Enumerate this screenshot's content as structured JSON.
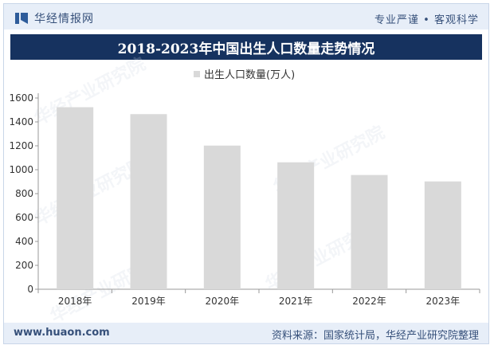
{
  "header": {
    "logo_text": "华经情报网",
    "slogan_left": "专业严谨",
    "slogan_separator": "•",
    "slogan_right": "客观科学"
  },
  "watermark": "华经产业研究院",
  "footer": {
    "website": "www.huaon.com",
    "source": "资料来源：国家统计局，华经产业研究院整理"
  },
  "colors": {
    "bar": "#d9d9d9",
    "title_bg": "#16325f",
    "band_bg": "#e7eef8",
    "brand_text": "#36507a"
  },
  "chart_data": {
    "type": "bar",
    "title": "2018-2023年中国出生人口数量走势情况",
    "categories": [
      "2018年",
      "2019年",
      "2020年",
      "2021年",
      "2022年",
      "2023年"
    ],
    "series": [
      {
        "name": "出生人口数量(万人)",
        "values": [
          1523,
          1465,
          1202,
          1062,
          956,
          902
        ]
      }
    ],
    "ylim": [
      0,
      1600
    ],
    "yticks": [
      0,
      200,
      400,
      600,
      800,
      1000,
      1200,
      1400,
      1600
    ],
    "legend_position": "top-center",
    "grid": false
  }
}
